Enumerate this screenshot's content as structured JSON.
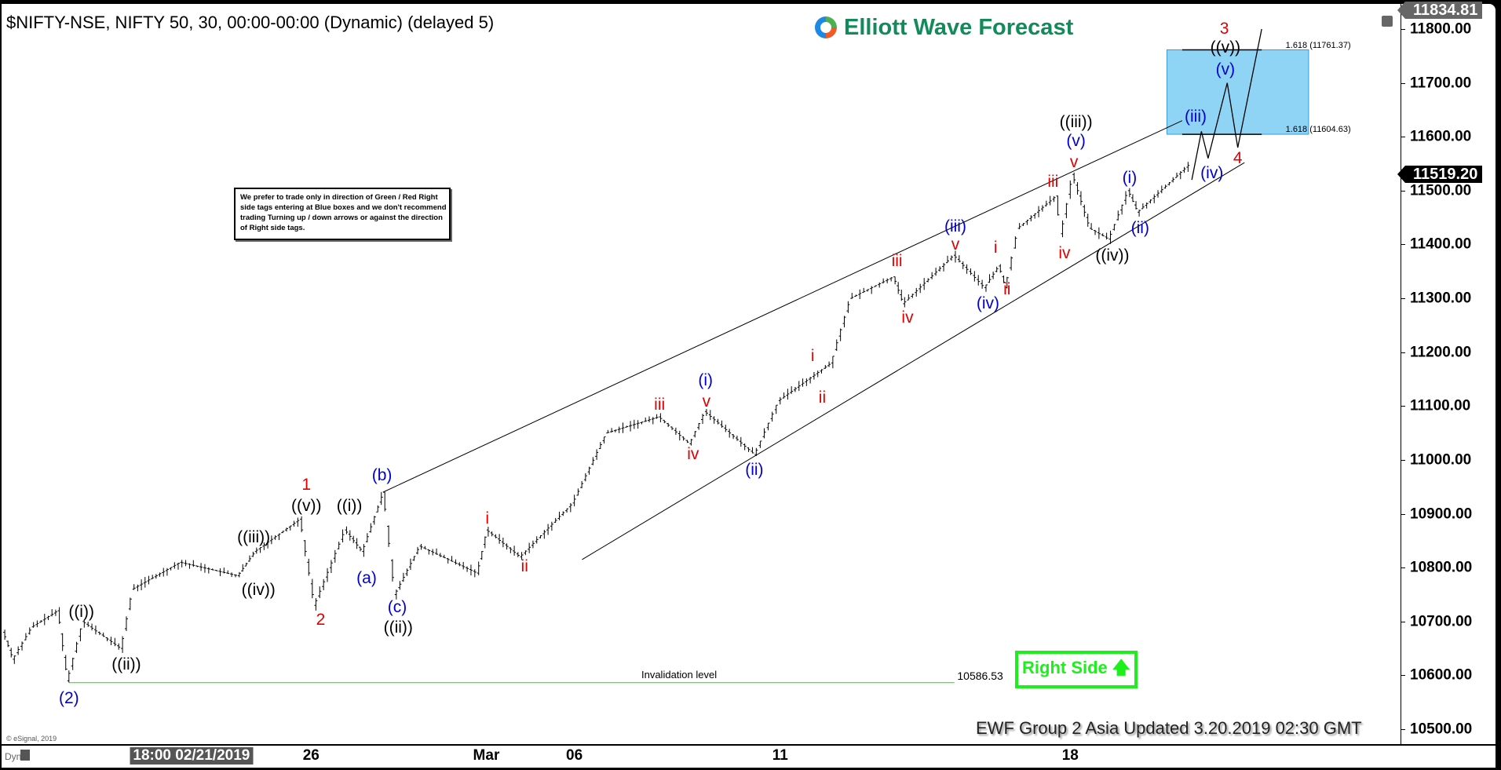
{
  "header": {
    "title": "$NIFTY-NSE, NIFTY 50, 30, 00:00-00:00 (Dynamic) (delayed 5)",
    "logo": "Elliott Wave Forecast"
  },
  "note": "We prefer to trade only in direction of Green / Red Right side tags entering at Blue boxes and we don't recommend trading Turning up / down arrows or against the direction of Right side tags.",
  "right_side": "Right Side",
  "footer": "EWF Group 2 Asia Updated 3.20.2019 02:30 GMT",
  "copyright": "© eSignal, 2019",
  "dyn": "Dyn",
  "colors": {
    "red": "#e00000",
    "blue": "#0000d0",
    "black": "#000000",
    "green": "#1bf01b",
    "box": "#8fd3f5"
  },
  "chart_data": {
    "type": "line",
    "title": "$NIFTY-NSE, NIFTY 50, 30",
    "ylim": [
      10460,
      11840
    ],
    "y_ticks": [
      "11800.00",
      "11700.00",
      "11600.00",
      "11500.00",
      "11400.00",
      "11300.00",
      "11200.00",
      "11100.00",
      "11000.00",
      "10900.00",
      "10800.00",
      "10700.00",
      "10600.00",
      "10500.00"
    ],
    "x_ticks": [
      "18:00 02/21/2019",
      "26",
      "Mar",
      "06",
      "11",
      "18"
    ],
    "last_high": "11834.81",
    "last_price": "11519.20",
    "pivots": [
      [
        5,
        10680
      ],
      [
        15,
        10630
      ],
      [
        35,
        10690
      ],
      [
        62,
        10720
      ],
      [
        72,
        10590
      ],
      [
        88,
        10700
      ],
      [
        128,
        10650
      ],
      [
        140,
        10760
      ],
      [
        190,
        10810
      ],
      [
        250,
        10785
      ],
      [
        268,
        10830
      ],
      [
        315,
        10890
      ],
      [
        330,
        10730
      ],
      [
        362,
        10870
      ],
      [
        380,
        10830
      ],
      [
        402,
        10940
      ],
      [
        414,
        10750
      ],
      [
        440,
        10840
      ],
      [
        500,
        10790
      ],
      [
        510,
        10870
      ],
      [
        545,
        10820
      ],
      [
        600,
        10920
      ],
      [
        635,
        11050
      ],
      [
        690,
        11080
      ],
      [
        722,
        11030
      ],
      [
        738,
        11090
      ],
      [
        790,
        11010
      ],
      [
        815,
        11110
      ],
      [
        870,
        11180
      ],
      [
        878,
        11230
      ],
      [
        890,
        11300
      ],
      [
        935,
        11340
      ],
      [
        945,
        11290
      ],
      [
        998,
        11380
      ],
      [
        1030,
        11320
      ],
      [
        1045,
        11360
      ],
      [
        1052,
        11320
      ],
      [
        1065,
        11430
      ],
      [
        1105,
        11490
      ],
      [
        1110,
        11420
      ],
      [
        1122,
        11530
      ],
      [
        1140,
        11430
      ],
      [
        1160,
        11410
      ],
      [
        1180,
        11500
      ],
      [
        1190,
        11460
      ],
      [
        1245,
        11550
      ]
    ],
    "projection": [
      [
        1245,
        11520
      ],
      [
        1255,
        11610
      ],
      [
        1262,
        11560
      ],
      [
        1282,
        11700
      ],
      [
        1293,
        11580
      ],
      [
        1318,
        11800
      ]
    ],
    "fib_box": {
      "top": 11761.37,
      "bottom": 11604.63,
      "top_label": "1.618 (11761.37)",
      "bottom_label": "1.618 (11604.63)"
    },
    "invalidation": {
      "value": 10586.53,
      "label": "Invalidation level",
      "value_label": "10586.53"
    },
    "wave_labels": [
      {
        "t": "(2)",
        "c": "blue"
      },
      {
        "t": "((i))",
        "c": "black"
      },
      {
        "t": "((ii))",
        "c": "black"
      },
      {
        "t": "((iii))",
        "c": "black"
      },
      {
        "t": "((iv))",
        "c": "black"
      },
      {
        "t": "1",
        "c": "red"
      },
      {
        "t": "((v))",
        "c": "black"
      },
      {
        "t": "2",
        "c": "red"
      },
      {
        "t": "((i))",
        "c": "black"
      },
      {
        "t": "(a)",
        "c": "blue"
      },
      {
        "t": "(b)",
        "c": "blue"
      },
      {
        "t": "(c)",
        "c": "blue"
      },
      {
        "t": "((ii))",
        "c": "black"
      },
      {
        "t": "i",
        "c": "red"
      },
      {
        "t": "ii",
        "c": "red"
      },
      {
        "t": "iii",
        "c": "red"
      },
      {
        "t": "iv",
        "c": "red"
      },
      {
        "t": "(i)",
        "c": "blue"
      },
      {
        "t": "v",
        "c": "red"
      },
      {
        "t": "(ii)",
        "c": "blue"
      },
      {
        "t": "i",
        "c": "red"
      },
      {
        "t": "ii",
        "c": "red"
      },
      {
        "t": "iii",
        "c": "red"
      },
      {
        "t": "iv",
        "c": "red"
      },
      {
        "t": "(iii)",
        "c": "blue"
      },
      {
        "t": "v",
        "c": "red"
      },
      {
        "t": "(iv)",
        "c": "blue"
      },
      {
        "t": "i",
        "c": "red"
      },
      {
        "t": "ii",
        "c": "red"
      },
      {
        "t": "iii",
        "c": "red"
      },
      {
        "t": "iv",
        "c": "red"
      },
      {
        "t": "((iii))",
        "c": "black"
      },
      {
        "t": "(v)",
        "c": "blue"
      },
      {
        "t": "v",
        "c": "red"
      },
      {
        "t": "(i)",
        "c": "blue"
      },
      {
        "t": "(ii)",
        "c": "blue"
      },
      {
        "t": "((iv))",
        "c": "black"
      },
      {
        "t": "(iii)",
        "c": "blue"
      },
      {
        "t": "(iv)",
        "c": "blue"
      },
      {
        "t": "4",
        "c": "red"
      },
      {
        "t": "(v)",
        "c": "blue"
      },
      {
        "t": "((v))",
        "c": "black"
      },
      {
        "t": "3",
        "c": "red"
      }
    ]
  }
}
